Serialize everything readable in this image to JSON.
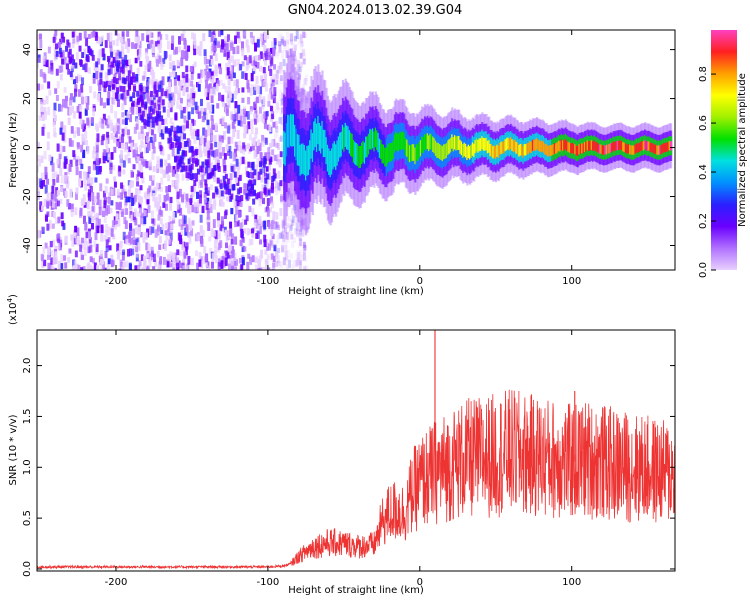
{
  "page": {
    "title": "GN04.2024.013.02.39.G04"
  },
  "colorbar": {
    "label": "Normalized spectral amplitude",
    "ticks": [
      {
        "value": 0.0,
        "label": "0.0"
      },
      {
        "value": 0.2,
        "label": "0.2"
      },
      {
        "value": 0.4,
        "label": "0.4"
      },
      {
        "value": 0.6,
        "label": "0.6"
      },
      {
        "value": 0.8,
        "label": "0.8"
      }
    ],
    "range": [
      0,
      0.98
    ],
    "colors": [
      "#e8d0ff",
      "#b070ff",
      "#6a00ff",
      "#2a20ff",
      "#0090ff",
      "#00e0e0",
      "#00e000",
      "#a0f000",
      "#ffff00",
      "#ffa000",
      "#ff2020",
      "#ff40c0"
    ]
  },
  "chart_data": [
    {
      "type": "heatmap",
      "title": "",
      "xlabel": "Height of straight line (km)",
      "ylabel": "Frequency (Hz)",
      "xlim": [
        -252,
        168
      ],
      "ylim": [
        -50,
        48
      ],
      "xticks": [
        {
          "value": -200,
          "label": "-200"
        },
        {
          "value": -100,
          "label": "-100"
        },
        {
          "value": 0,
          "label": "0"
        },
        {
          "value": 100,
          "label": "100"
        }
      ],
      "yticks": [
        {
          "value": -40,
          "label": "-40"
        },
        {
          "value": -20,
          "label": "-20"
        },
        {
          "value": 0,
          "label": "0"
        },
        {
          "value": 20,
          "label": "20"
        },
        {
          "value": 40,
          "label": "40"
        }
      ],
      "noise_region": {
        "x": [
          -252,
          -83
        ],
        "y": [
          -50,
          48
        ]
      },
      "trend_arc": [
        {
          "x": -240,
          "y": 42
        },
        {
          "x": -200,
          "y": 30
        },
        {
          "x": -180,
          "y": 18
        },
        {
          "x": -160,
          "y": 2
        },
        {
          "x": -145,
          "y": -10
        },
        {
          "x": -120,
          "y": -16
        },
        {
          "x": -95,
          "y": -8
        }
      ],
      "signal_band": [
        {
          "x": -90,
          "amplitude": 0.45,
          "spread": 8
        },
        {
          "x": -60,
          "amplitude": 0.5,
          "spread": 6
        },
        {
          "x": -30,
          "amplitude": 0.55,
          "spread": 4
        },
        {
          "x": 0,
          "amplitude": 0.62,
          "spread": 3
        },
        {
          "x": 40,
          "amplitude": 0.75,
          "spread": 2
        },
        {
          "x": 80,
          "amplitude": 0.88,
          "spread": 1.5
        },
        {
          "x": 120,
          "amplitude": 0.95,
          "spread": 1
        },
        {
          "x": 165,
          "amplitude": 0.95,
          "spread": 1
        }
      ]
    },
    {
      "type": "line",
      "title": "",
      "xlabel": "Height of straight line (km)",
      "ylabel": "SNR (10 * v/v)",
      "scale_label": "(x10",
      "scale_exponent": "4",
      "scale_close": ")",
      "xlim": [
        -252,
        168
      ],
      "ylim": [
        -0.02,
        2.35
      ],
      "xticks": [
        {
          "value": -200,
          "label": "-200"
        },
        {
          "value": -100,
          "label": "-100"
        },
        {
          "value": 0,
          "label": "0"
        },
        {
          "value": 100,
          "label": "100"
        }
      ],
      "yticks": [
        {
          "value": 0.0,
          "label": "0.0"
        },
        {
          "value": 0.5,
          "label": "0.5"
        },
        {
          "value": 1.0,
          "label": "1.0"
        },
        {
          "value": 1.5,
          "label": "1.5"
        },
        {
          "value": 2.0,
          "label": "2.0"
        }
      ],
      "color": "#ee3333",
      "series": [
        {
          "x": [
            -252,
            -200,
            -150,
            -100,
            -90,
            -85,
            -80,
            -70,
            -60,
            -50,
            -40,
            -30,
            -25,
            -20,
            -15,
            -10,
            -5,
            0,
            10,
            20,
            30,
            40,
            50,
            60,
            70,
            80,
            90,
            100,
            110,
            120,
            130,
            140,
            150,
            160,
            168
          ],
          "values": [
            0.02,
            0.02,
            0.02,
            0.02,
            0.03,
            0.05,
            0.12,
            0.22,
            0.26,
            0.25,
            0.22,
            0.24,
            0.45,
            0.55,
            0.58,
            0.55,
            0.75,
            0.85,
            0.95,
            1.02,
            1.08,
            1.1,
            1.12,
            1.15,
            1.12,
            1.1,
            1.08,
            1.05,
            1.08,
            1.05,
            1.02,
            1.0,
            0.98,
            0.95,
            0.95
          ]
        }
      ],
      "annotations": [
        {
          "x": 10,
          "y": 2.35,
          "label": ""
        },
        {
          "x": 102,
          "y": 1.75,
          "label": ""
        }
      ]
    }
  ]
}
